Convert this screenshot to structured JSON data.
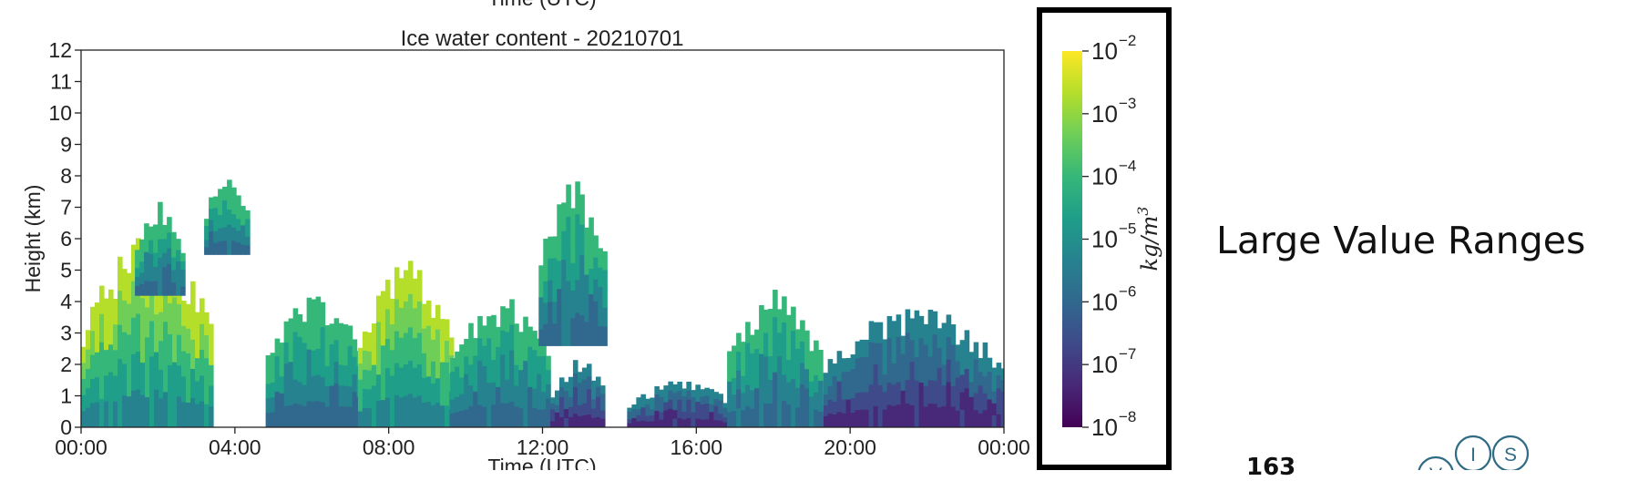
{
  "chart_data": {
    "type": "heatmap",
    "title": "Ice water content - 20210701",
    "partial_header": "Time (UTC)",
    "xlabel": "Time (UTC)",
    "ylabel": "Height (km)",
    "x_range_hours": [
      0,
      24
    ],
    "xticks": [
      "00:00",
      "04:00",
      "08:00",
      "12:00",
      "16:00",
      "20:00",
      "00:00"
    ],
    "ylim": [
      0,
      12
    ],
    "yticks": [
      "0",
      "1",
      "2",
      "3",
      "4",
      "5",
      "6",
      "7",
      "8",
      "9",
      "10",
      "11",
      "12"
    ],
    "colormap": "viridis",
    "colors": [
      "#440154",
      "#482878",
      "#3e4a89",
      "#31688e",
      "#26828e",
      "#1f9e89",
      "#35b779",
      "#6ece58",
      "#b5de2b",
      "#fde725"
    ],
    "background_color": "#ffffff",
    "colorbar": {
      "scale": "log",
      "label": "kg/m",
      "label_exponent": "3",
      "range": [
        "1e-8",
        "1e-2"
      ],
      "ticks": [
        {
          "base": "10",
          "exp": "−8"
        },
        {
          "base": "10",
          "exp": "−7"
        },
        {
          "base": "10",
          "exp": "−6"
        },
        {
          "base": "10",
          "exp": "−5"
        },
        {
          "base": "10",
          "exp": "−4"
        },
        {
          "base": "10",
          "exp": "−3"
        },
        {
          "base": "10",
          "exp": "−2"
        }
      ]
    },
    "cloud_regions": [
      {
        "x": [
          0.0,
          3.4
        ],
        "y": [
          0.0,
          6.2
        ],
        "level": "high"
      },
      {
        "x": [
          1.4,
          2.6
        ],
        "y": [
          4.2,
          7.2
        ],
        "level": "mid"
      },
      {
        "x": [
          3.2,
          4.3
        ],
        "y": [
          5.5,
          8.1
        ],
        "level": "mid"
      },
      {
        "x": [
          4.8,
          7.4
        ],
        "y": [
          0.0,
          4.3
        ],
        "level": "mid"
      },
      {
        "x": [
          7.2,
          9.6
        ],
        "y": [
          0.0,
          5.4
        ],
        "level": "high"
      },
      {
        "x": [
          9.6,
          12.2
        ],
        "y": [
          0.0,
          4.2
        ],
        "level": "mid"
      },
      {
        "x": [
          11.9,
          13.6
        ],
        "y": [
          2.6,
          8.0
        ],
        "level": "mid"
      },
      {
        "x": [
          12.2,
          13.6
        ],
        "y": [
          0.0,
          2.2
        ],
        "level": "low"
      },
      {
        "x": [
          14.2,
          16.9
        ],
        "y": [
          0.0,
          1.5
        ],
        "level": "low"
      },
      {
        "x": [
          16.8,
          19.2
        ],
        "y": [
          0.0,
          4.5
        ],
        "level": "mid"
      },
      {
        "x": [
          19.3,
          24.0
        ],
        "y": [
          0.0,
          3.9
        ],
        "level": "low"
      }
    ]
  },
  "slide": {
    "heading": "Large Value Ranges",
    "page_number": "163",
    "logo_letters": [
      "V",
      "I",
      "S"
    ]
  }
}
